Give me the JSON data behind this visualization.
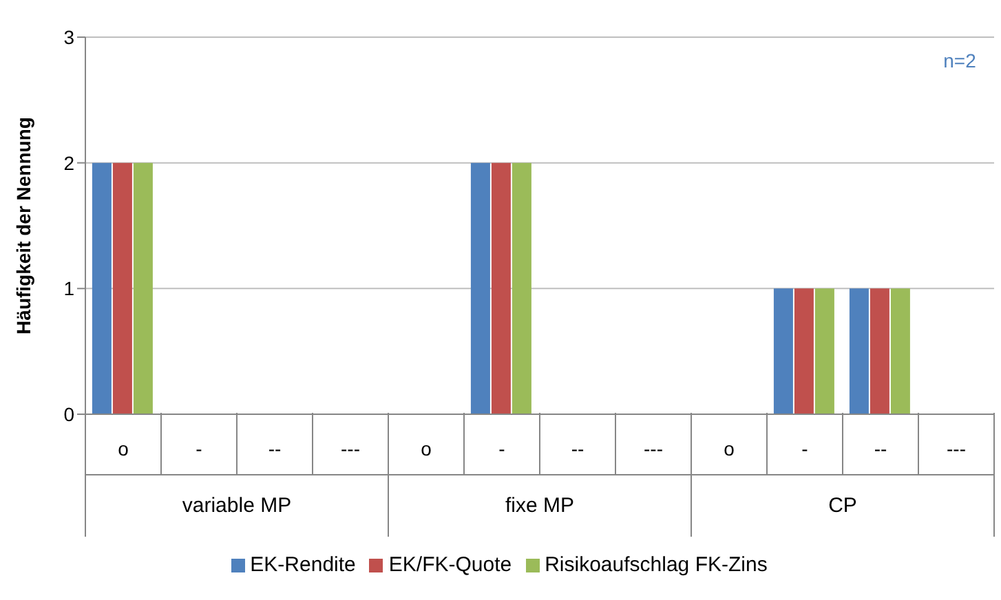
{
  "chart_data": {
    "type": "bar",
    "ylabel": "Häufigkeit der Nennung",
    "categories": [
      "o",
      "-",
      "--",
      "---",
      "o",
      "-",
      "--",
      "---",
      "o",
      "-",
      "--",
      "---"
    ],
    "series": [
      {
        "name": "EK-Rendite",
        "color": "#4f81bd",
        "values": [
          2,
          0,
          0,
          0,
          0,
          2,
          0,
          0,
          0,
          1,
          1,
          0
        ]
      },
      {
        "name": "EK/FK-Quote",
        "color": "#c0504d",
        "values": [
          2,
          0,
          0,
          0,
          0,
          2,
          0,
          0,
          0,
          1,
          1,
          0
        ]
      },
      {
        "name": "Risikoaufschlag FK-Zins",
        "color": "#9bbb59",
        "values": [
          2,
          0,
          0,
          0,
          0,
          2,
          0,
          0,
          0,
          1,
          1,
          0
        ]
      }
    ],
    "ylim": [
      0,
      3
    ],
    "yticks": [
      0,
      1,
      2,
      3
    ],
    "grid": "y",
    "legend": "bottom",
    "annotations": [
      "variable MP",
      "fixe MP",
      "CP",
      "n=2"
    ]
  }
}
